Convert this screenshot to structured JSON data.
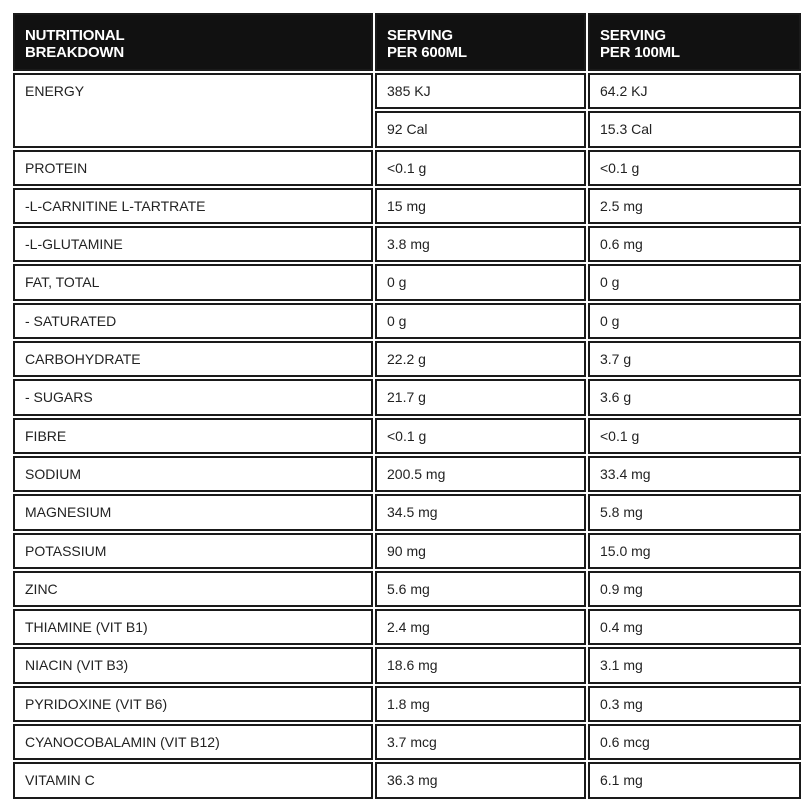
{
  "table": {
    "header": [
      [
        "NUTRITIONAL",
        "BREAKDOWN"
      ],
      [
        "SERVING",
        "PER 600ML"
      ],
      [
        "SERVING",
        "PER 100ML"
      ]
    ],
    "rows": [
      [
        "ENERGY",
        [
          "385 KJ",
          "92 Cal"
        ],
        [
          "64.2 KJ",
          "15.3 Cal"
        ]
      ],
      [
        "PROTEIN",
        "<0.1 g",
        "<0.1 g"
      ],
      [
        "-L-CARNITINE L-TARTRATE",
        "15 mg",
        "2.5 mg"
      ],
      [
        "-L-GLUTAMINE",
        "3.8 mg",
        "0.6 mg"
      ],
      [
        "FAT, TOTAL",
        "0 g",
        "0 g"
      ],
      [
        "- SATURATED",
        "0 g",
        "0 g"
      ],
      [
        "CARBOHYDRATE",
        "22.2 g",
        "3.7 g"
      ],
      [
        "- SUGARS",
        "21.7 g",
        "3.6 g"
      ],
      [
        "FIBRE",
        "<0.1 g",
        "<0.1 g"
      ],
      [
        "SODIUM",
        "200.5 mg",
        "33.4 mg"
      ],
      [
        "MAGNESIUM",
        "34.5 mg",
        "5.8 mg"
      ],
      [
        "POTASSIUM",
        "90 mg",
        "15.0 mg"
      ],
      [
        "ZINC",
        "5.6 mg",
        "0.9 mg"
      ],
      [
        "THIAMINE (VIT B1)",
        "2.4 mg",
        "0.4 mg"
      ],
      [
        "NIACIN (VIT B3)",
        "18.6 mg",
        "3.1 mg"
      ],
      [
        "PYRIDOXINE (VIT B6)",
        "1.8 mg",
        "0.3 mg"
      ],
      [
        "CYANOCOBALAMIN (VIT B12)",
        "3.7 mcg",
        "0.6 mcg"
      ],
      [
        "VITAMIN C",
        "36.3 mg",
        "6.1 mg"
      ]
    ]
  }
}
